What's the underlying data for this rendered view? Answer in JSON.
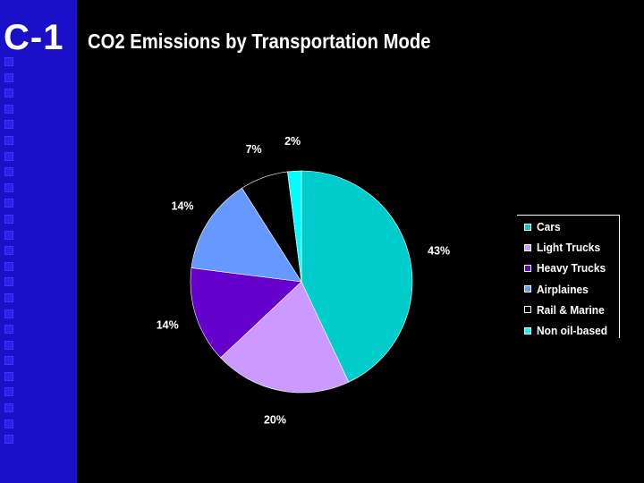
{
  "slide": {
    "label": "C-1",
    "title": "CO2 Emissions by Transportation Mode"
  },
  "colors": {
    "background": "#000000",
    "sidebar": "#1a10c8",
    "text": "#ffffff"
  },
  "chart_data": {
    "type": "pie",
    "title": "",
    "slices": [
      {
        "label": "Cars",
        "value": 43,
        "display": "43%",
        "color": "#00cccc"
      },
      {
        "label": "Light Trucks",
        "value": 20,
        "display": "20%",
        "color": "#cc99ff"
      },
      {
        "label": "Heavy Trucks",
        "value": 14,
        "display": "14%",
        "color": "#6600cc"
      },
      {
        "label": "Airplaines",
        "value": 14,
        "display": "14%",
        "color": "#6699ff"
      },
      {
        "label": "Rail & Marine",
        "value": 7,
        "display": "7%",
        "color": "#000000"
      },
      {
        "label": "Non oil-based",
        "value": 2,
        "display": "2%",
        "color": "#00ffff"
      }
    ],
    "legend_position": "right"
  }
}
